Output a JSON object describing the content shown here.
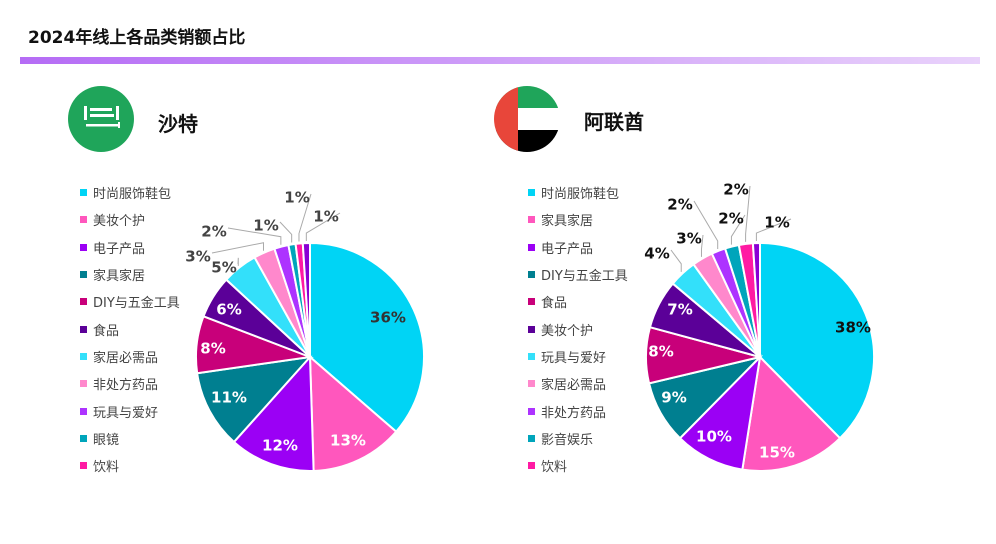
{
  "title": "2024年线上各品类销额占比",
  "chart_data": [
    {
      "type": "pie",
      "title": "沙特",
      "categories": [
        "时尚服饰鞋包",
        "美妆个护",
        "电子产品",
        "家具家居",
        "DIY与五金工具",
        "食品",
        "家居必需品",
        "非处方药品",
        "玩具与爱好",
        "眼镜",
        "饮料",
        ""
      ],
      "values": [
        36,
        13,
        12,
        11,
        8,
        6,
        5,
        3,
        2,
        1,
        1,
        1
      ],
      "labels": [
        "36%",
        "13%",
        "12%",
        "11%",
        "8%",
        "6%",
        "5%",
        "3%",
        "2%",
        "1%",
        "1%",
        "1%"
      ],
      "colors": [
        "#00d4f5",
        "#ff57bd",
        "#9b00f5",
        "#007f90",
        "#c8007a",
        "#5b0098",
        "#33e0fa",
        "#ff88cc",
        "#ad33ff",
        "#00a5bb",
        "#ff1aa3",
        "#8a00d4"
      ]
    },
    {
      "type": "pie",
      "title": "阿联酋",
      "categories": [
        "时尚服饰鞋包",
        "家具家居",
        "电子产品",
        "DIY与五金工具",
        "食品",
        "美妆个护",
        "玩具与爱好",
        "家居必需品",
        "非处方药品",
        "影音娱乐",
        "饮料",
        ""
      ],
      "values": [
        38,
        15,
        10,
        9,
        8,
        7,
        4,
        3,
        2,
        2,
        2,
        1
      ],
      "labels": [
        "38%",
        "15%",
        "10%",
        "9%",
        "8%",
        "7%",
        "4%",
        "3%",
        "2%",
        "2%",
        "2%",
        "1%"
      ],
      "colors": [
        "#00d4f5",
        "#ff57bd",
        "#9b00f5",
        "#007f90",
        "#c8007a",
        "#5b0098",
        "#33e0fa",
        "#ff88cc",
        "#ad33ff",
        "#00a5bb",
        "#ff1aa3",
        "#8a00d4"
      ]
    }
  ]
}
